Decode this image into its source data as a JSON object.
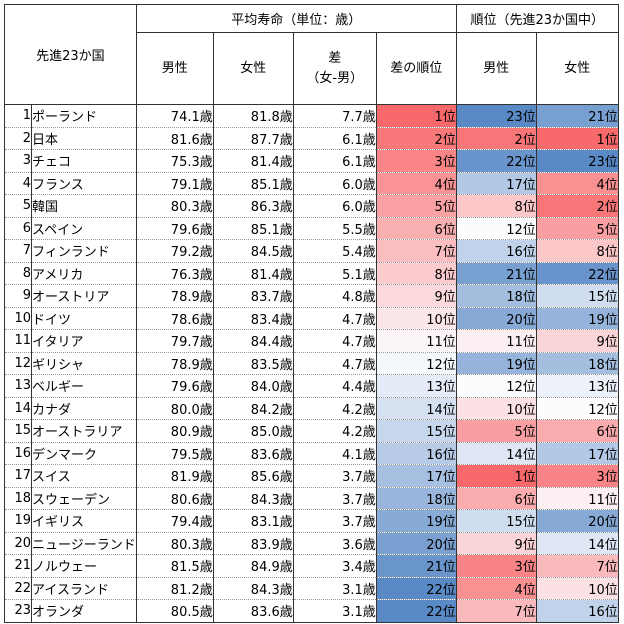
{
  "header": {
    "corner_label": "先進23か国",
    "group_life": "平均寿命（単位：歳）",
    "group_rank": "順位（先進23か国中）",
    "col_male": "男性",
    "col_female": "女性",
    "col_diff_line1": "差",
    "col_diff_line2": "（女-男）",
    "col_diff_rank": "差の順位",
    "col_rank_male": "男性",
    "col_rank_female": "女性"
  },
  "colors": {
    "top_rank": "#f8696b",
    "middle_rank": "#fcfcff",
    "bottom_rank": "#5a8ac6"
  },
  "chart_data": {
    "type": "table",
    "columns": [
      "",
      "先進23か国",
      "男性",
      "女性",
      "差（女-男）",
      "差の順位",
      "順位 男性",
      "順位 女性"
    ],
    "rows": [
      {
        "no": "1",
        "country": "ポーランド",
        "male": "74.1歳",
        "female": "81.8歳",
        "diff": "7.7歳",
        "diff_rank": "1位",
        "rank_male": "23位",
        "rank_female": "21位"
      },
      {
        "no": "2",
        "country": "日本",
        "male": "81.6歳",
        "female": "87.7歳",
        "diff": "6.1歳",
        "diff_rank": "2位",
        "rank_male": "2位",
        "rank_female": "1位"
      },
      {
        "no": "3",
        "country": "チェコ",
        "male": "75.3歳",
        "female": "81.4歳",
        "diff": "6.1歳",
        "diff_rank": "3位",
        "rank_male": "22位",
        "rank_female": "23位"
      },
      {
        "no": "4",
        "country": "フランス",
        "male": "79.1歳",
        "female": "85.1歳",
        "diff": "6.0歳",
        "diff_rank": "4位",
        "rank_male": "17位",
        "rank_female": "4位"
      },
      {
        "no": "5",
        "country": "韓国",
        "male": "80.3歳",
        "female": "86.3歳",
        "diff": "6.0歳",
        "diff_rank": "5位",
        "rank_male": "8位",
        "rank_female": "2位"
      },
      {
        "no": "6",
        "country": "スペイン",
        "male": "79.6歳",
        "female": "85.1歳",
        "diff": "5.5歳",
        "diff_rank": "6位",
        "rank_male": "12位",
        "rank_female": "5位"
      },
      {
        "no": "7",
        "country": "フィンランド",
        "male": "79.2歳",
        "female": "84.5歳",
        "diff": "5.4歳",
        "diff_rank": "7位",
        "rank_male": "16位",
        "rank_female": "8位"
      },
      {
        "no": "8",
        "country": "アメリカ",
        "male": "76.3歳",
        "female": "81.4歳",
        "diff": "5.1歳",
        "diff_rank": "8位",
        "rank_male": "21位",
        "rank_female": "22位"
      },
      {
        "no": "9",
        "country": "オーストリア",
        "male": "78.9歳",
        "female": "83.7歳",
        "diff": "4.8歳",
        "diff_rank": "9位",
        "rank_male": "18位",
        "rank_female": "15位"
      },
      {
        "no": "10",
        "country": "ドイツ",
        "male": "78.6歳",
        "female": "83.4歳",
        "diff": "4.7歳",
        "diff_rank": "10位",
        "rank_male": "20位",
        "rank_female": "19位"
      },
      {
        "no": "11",
        "country": "イタリア",
        "male": "79.7歳",
        "female": "84.4歳",
        "diff": "4.7歳",
        "diff_rank": "11位",
        "rank_male": "11位",
        "rank_female": "9位"
      },
      {
        "no": "12",
        "country": "ギリシャ",
        "male": "78.9歳",
        "female": "83.5歳",
        "diff": "4.7歳",
        "diff_rank": "12位",
        "rank_male": "19位",
        "rank_female": "18位"
      },
      {
        "no": "13",
        "country": "ベルギー",
        "male": "79.6歳",
        "female": "84.0歳",
        "diff": "4.4歳",
        "diff_rank": "13位",
        "rank_male": "12位",
        "rank_female": "13位"
      },
      {
        "no": "14",
        "country": "カナダ",
        "male": "80.0歳",
        "female": "84.2歳",
        "diff": "4.2歳",
        "diff_rank": "14位",
        "rank_male": "10位",
        "rank_female": "12位"
      },
      {
        "no": "15",
        "country": "オーストラリア",
        "male": "80.9歳",
        "female": "85.0歳",
        "diff": "4.2歳",
        "diff_rank": "15位",
        "rank_male": "5位",
        "rank_female": "6位"
      },
      {
        "no": "16",
        "country": "デンマーク",
        "male": "79.5歳",
        "female": "83.6歳",
        "diff": "4.1歳",
        "diff_rank": "16位",
        "rank_male": "14位",
        "rank_female": "17位"
      },
      {
        "no": "17",
        "country": "スイス",
        "male": "81.9歳",
        "female": "85.6歳",
        "diff": "3.7歳",
        "diff_rank": "17位",
        "rank_male": "1位",
        "rank_female": "3位"
      },
      {
        "no": "18",
        "country": "スウェーデン",
        "male": "80.6歳",
        "female": "84.3歳",
        "diff": "3.7歳",
        "diff_rank": "18位",
        "rank_male": "6位",
        "rank_female": "11位"
      },
      {
        "no": "19",
        "country": "イギリス",
        "male": "79.4歳",
        "female": "83.1歳",
        "diff": "3.7歳",
        "diff_rank": "19位",
        "rank_male": "15位",
        "rank_female": "20位"
      },
      {
        "no": "20",
        "country": "ニュージーランド",
        "male": "80.3歳",
        "female": "83.9歳",
        "diff": "3.6歳",
        "diff_rank": "20位",
        "rank_male": "9位",
        "rank_female": "14位"
      },
      {
        "no": "21",
        "country": "ノルウェー",
        "male": "81.5歳",
        "female": "84.9歳",
        "diff": "3.4歳",
        "diff_rank": "21位",
        "rank_male": "3位",
        "rank_female": "7位"
      },
      {
        "no": "22",
        "country": "アイスランド",
        "male": "81.2歳",
        "female": "84.3歳",
        "diff": "3.1歳",
        "diff_rank": "22位",
        "rank_male": "4位",
        "rank_female": "10位"
      },
      {
        "no": "23",
        "country": "オランダ",
        "male": "80.5歳",
        "female": "83.6歳",
        "diff": "3.1歳",
        "diff_rank": "22位",
        "rank_male": "7位",
        "rank_female": "16位"
      }
    ]
  }
}
